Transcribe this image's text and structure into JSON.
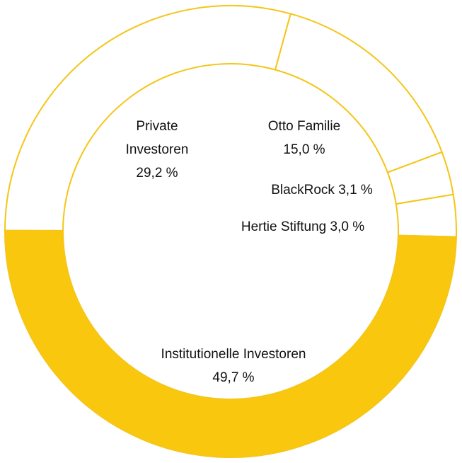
{
  "chart_data": {
    "type": "donut",
    "categories": [
      "Otto Familie",
      "BlackRock",
      "Hertie Stiftung",
      "Institutionelle Investoren",
      "Private Investoren"
    ],
    "values": [
      15.0,
      3.1,
      3.0,
      49.7,
      29.2
    ],
    "value_labels": [
      "15,0 %",
      "3,1 %",
      "3,0 %",
      "49,7 %",
      "29,2 %"
    ],
    "colors": [
      "#ffffff",
      "#ffffff",
      "#ffffff",
      "#f9c80e",
      "#ffffff"
    ],
    "edge_color": "#f5c518"
  }
}
